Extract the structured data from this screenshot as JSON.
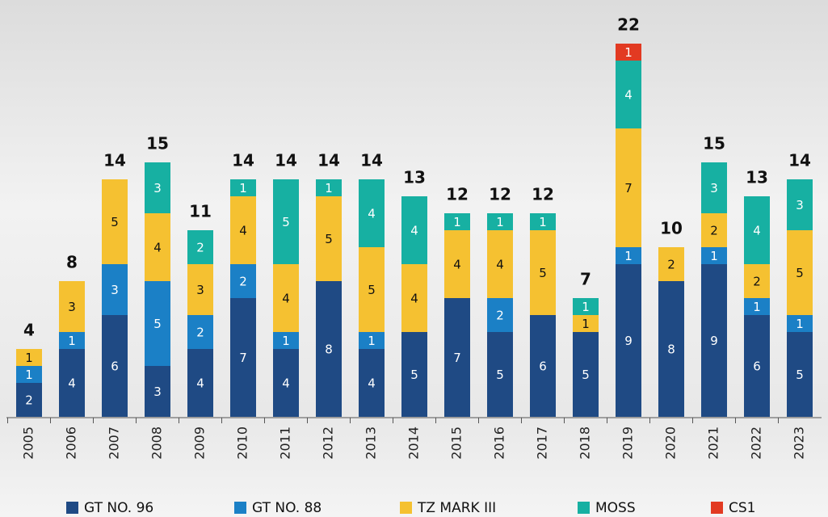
{
  "chart_data": {
    "type": "stacked-bar",
    "categories": [
      "2005",
      "2006",
      "2007",
      "2008",
      "2009",
      "2010",
      "2011",
      "2012",
      "2013",
      "2014",
      "2015",
      "2016",
      "2017",
      "2018",
      "2019",
      "2020",
      "2021",
      "2022",
      "2023"
    ],
    "series": [
      {
        "name": "GT NO. 96",
        "color": "#1f4a84",
        "values": [
          2,
          4,
          6,
          3,
          4,
          7,
          4,
          8,
          4,
          5,
          7,
          5,
          6,
          5,
          9,
          8,
          9,
          6,
          5
        ]
      },
      {
        "name": "GT NO. 88",
        "color": "#1b80c6",
        "values": [
          1,
          1,
          3,
          5,
          2,
          2,
          1,
          null,
          1,
          null,
          null,
          2,
          null,
          null,
          1,
          null,
          1,
          1,
          1
        ]
      },
      {
        "name": "TZ MARK III",
        "color": "#f5c131",
        "values": [
          1,
          3,
          5,
          4,
          3,
          4,
          4,
          5,
          5,
          4,
          4,
          4,
          5,
          1,
          7,
          2,
          2,
          2,
          5
        ]
      },
      {
        "name": "MOSS",
        "color": "#17b0a2",
        "values": [
          null,
          null,
          null,
          3,
          2,
          1,
          5,
          1,
          4,
          4,
          1,
          1,
          1,
          1,
          4,
          null,
          3,
          4,
          3
        ]
      },
      {
        "name": "CS1",
        "color": "#e23a22",
        "values": [
          null,
          null,
          null,
          null,
          null,
          null,
          null,
          null,
          null,
          null,
          null,
          null,
          null,
          null,
          1,
          null,
          null,
          null,
          null
        ]
      }
    ],
    "totals": [
      4,
      8,
      14,
      15,
      11,
      14,
      14,
      14,
      14,
      13,
      12,
      12,
      12,
      7,
      22,
      10,
      15,
      13,
      14
    ],
    "legend": "bottom"
  }
}
